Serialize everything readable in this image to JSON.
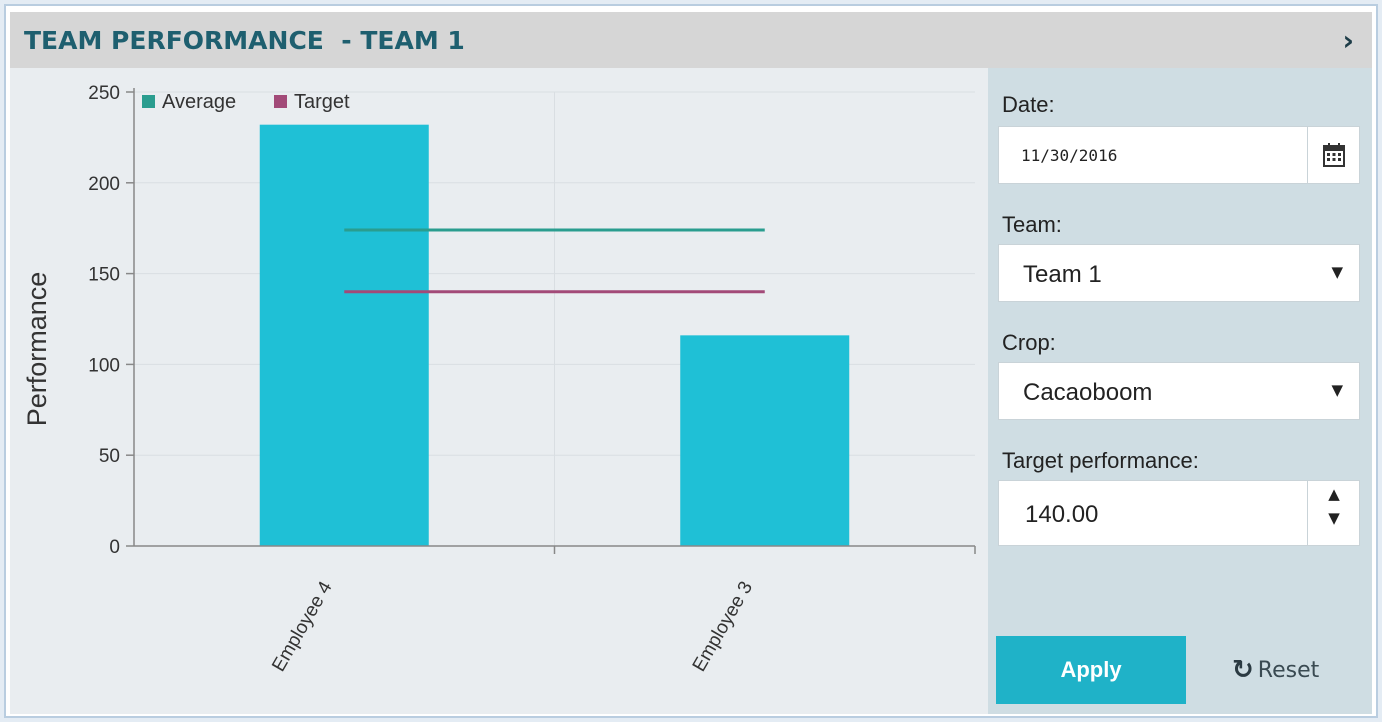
{
  "header": {
    "title": "TEAM PERFORMANCE  - TEAM 1",
    "arrow": "›"
  },
  "chart_data": {
    "type": "bar",
    "categories": [
      "Employee 4",
      "Employee 3"
    ],
    "series": [
      {
        "name": "",
        "values": [
          232,
          116
        ],
        "color": "#1fc0d6"
      }
    ],
    "lines": [
      {
        "name": "Average",
        "value": 174,
        "color": "#2a9d8f"
      },
      {
        "name": "Target",
        "value": 140,
        "color": "#a24a78"
      }
    ],
    "ylabel": "Performance",
    "xlabel": "",
    "ylim": [
      0,
      250
    ],
    "yticks": [
      0,
      50,
      100,
      150,
      200,
      250
    ],
    "legend_position": "top-left",
    "grid": true
  },
  "panel": {
    "date_label": "Date:",
    "date_value": "11/30/2016",
    "team_label": "Team:",
    "team_value": "Team 1",
    "crop_label": "Crop:",
    "crop_value": "Cacaoboom",
    "target_label": "Target performance:",
    "target_value": "140.00",
    "apply_label": "Apply",
    "reset_label": "Reset"
  },
  "icons": {
    "calendar": "calendar-icon",
    "caret": "▼",
    "spin_up": "▲",
    "spin_down": "▼",
    "reset": "↻"
  }
}
